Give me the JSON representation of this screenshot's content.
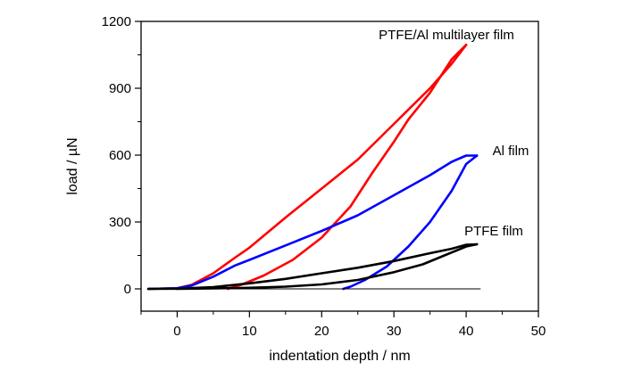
{
  "chart_data": {
    "type": "line",
    "xlabel": "indentation depth / nm",
    "ylabel": "load / µN",
    "xlim": [
      -5,
      50
    ],
    "ylim": [
      -100,
      1200
    ],
    "xticks": [
      0,
      10,
      20,
      30,
      40,
      50
    ],
    "yticks": [
      0,
      300,
      600,
      900,
      1200
    ],
    "grid": false,
    "series": [
      {
        "name": "PTFE/Al multilayer film",
        "color": "#ff0000",
        "loading": [
          [
            -4,
            0
          ],
          [
            0,
            3
          ],
          [
            2,
            18
          ],
          [
            5,
            70
          ],
          [
            8,
            140
          ],
          [
            10,
            185
          ],
          [
            15,
            320
          ],
          [
            20,
            450
          ],
          [
            25,
            580
          ],
          [
            30,
            740
          ],
          [
            35,
            900
          ],
          [
            38,
            1010
          ],
          [
            40,
            1095
          ]
        ],
        "unloading": [
          [
            40,
            1095
          ],
          [
            38,
            1030
          ],
          [
            35,
            880
          ],
          [
            32,
            760
          ],
          [
            30,
            660
          ],
          [
            27,
            520
          ],
          [
            24,
            370
          ],
          [
            20,
            230
          ],
          [
            16,
            130
          ],
          [
            12,
            60
          ],
          [
            9,
            20
          ],
          [
            7,
            0
          ]
        ]
      },
      {
        "name": "Al film",
        "color": "#0000ff",
        "loading": [
          [
            -4,
            0
          ],
          [
            0,
            3
          ],
          [
            2,
            15
          ],
          [
            5,
            55
          ],
          [
            8,
            105
          ],
          [
            10,
            130
          ],
          [
            15,
            195
          ],
          [
            20,
            260
          ],
          [
            25,
            330
          ],
          [
            30,
            420
          ],
          [
            35,
            510
          ],
          [
            38,
            570
          ],
          [
            40,
            598
          ],
          [
            41.5,
            598
          ]
        ],
        "unloading": [
          [
            41.5,
            598
          ],
          [
            40,
            560
          ],
          [
            38,
            440
          ],
          [
            35,
            300
          ],
          [
            32,
            190
          ],
          [
            29,
            100
          ],
          [
            26,
            40
          ],
          [
            24,
            10
          ],
          [
            23,
            0
          ]
        ]
      },
      {
        "name": "PTFE film",
        "color": "#000000",
        "loading": [
          [
            -4,
            0
          ],
          [
            0,
            1
          ],
          [
            5,
            8
          ],
          [
            10,
            25
          ],
          [
            15,
            45
          ],
          [
            20,
            70
          ],
          [
            25,
            95
          ],
          [
            30,
            125
          ],
          [
            35,
            160
          ],
          [
            38,
            180
          ],
          [
            40,
            198
          ],
          [
            41.5,
            200
          ]
        ],
        "unloading": [
          [
            41.5,
            200
          ],
          [
            40,
            190
          ],
          [
            37,
            150
          ],
          [
            34,
            110
          ],
          [
            30,
            75
          ],
          [
            25,
            40
          ],
          [
            20,
            20
          ],
          [
            15,
            10
          ],
          [
            10,
            5
          ],
          [
            5,
            2
          ],
          [
            0,
            0
          ]
        ],
        "baseline": [
          [
            -4,
            0
          ],
          [
            42,
            0
          ]
        ]
      }
    ],
    "annotations": [
      "PTFE/Al multilayer film",
      "Al film",
      "PTFE film"
    ]
  }
}
